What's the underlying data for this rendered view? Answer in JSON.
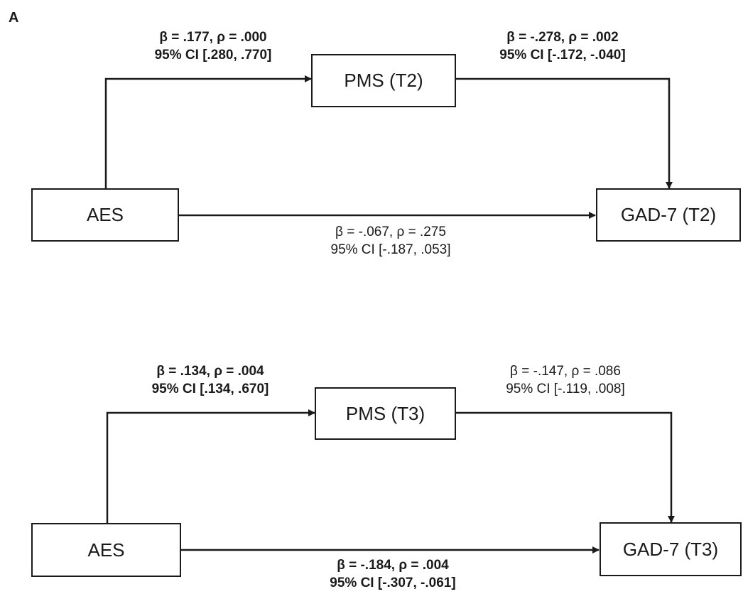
{
  "panel_label": "A",
  "models": [
    {
      "nodes": {
        "predictor": "AES",
        "mediator": "PMS (T2)",
        "outcome": "GAD-7 (T2)"
      },
      "paths": {
        "a": {
          "line1": "β = .177, ρ = .000",
          "line2": "95% CI [.280, .770]"
        },
        "b": {
          "line1": "β = -.278, ρ = .002",
          "line2": "95% CI [-.172, -.040]"
        },
        "c": {
          "line1": "β = -.067, ρ = .275",
          "line2": "95% CI [-.187, .053]"
        }
      }
    },
    {
      "nodes": {
        "predictor": "AES",
        "mediator": "PMS (T3)",
        "outcome": "GAD-7 (T3)"
      },
      "paths": {
        "a": {
          "line1": "β = .134, ρ = .004",
          "line2": "95% CI [.134, .670]"
        },
        "b": {
          "line1": "β = -.147, ρ = .086",
          "line2": "95% CI [-.119, .008]"
        },
        "c": {
          "line1": "β = -.184, ρ = .004",
          "line2": "95% CI [-.307, -.061]"
        }
      }
    }
  ]
}
